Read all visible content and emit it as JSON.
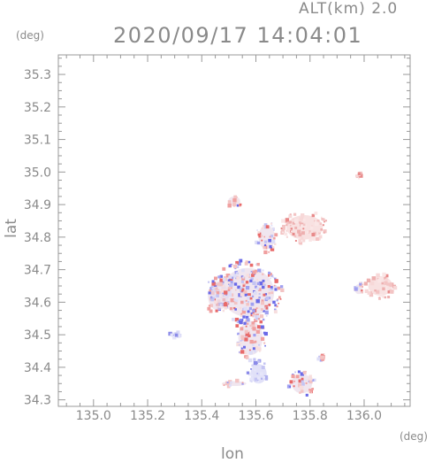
{
  "header": {
    "altitude_text": "ALT(km) 2.0",
    "timestamp": "2020/09/17 14:04:01"
  },
  "chart_data": {
    "type": "scatter",
    "title": "2020/09/17 14:04:01",
    "subtitle": "ALT(km) 2.0",
    "xlabel": "lon",
    "ylabel": "lat",
    "x_unit": "(deg)",
    "y_unit": "(deg)",
    "xlim": [
      134.87,
      136.17
    ],
    "ylim": [
      34.28,
      35.36
    ],
    "x_ticks": [
      135.0,
      135.2,
      135.4,
      135.6,
      135.8,
      136.0
    ],
    "x_tick_labels": [
      "135.0",
      "135.2",
      "135.4",
      "135.6",
      "135.8",
      "136.0"
    ],
    "y_ticks": [
      34.3,
      34.4,
      34.5,
      34.6,
      34.7,
      34.8,
      34.9,
      35.0,
      35.1,
      35.2,
      35.3
    ],
    "y_tick_labels": [
      "34.3",
      "34.4",
      "34.5",
      "34.6",
      "34.7",
      "34.8",
      "34.9",
      "35.0",
      "35.1",
      "35.2",
      "35.3"
    ],
    "grid": false,
    "colors": {
      "positive": "#e88080",
      "negative": "#8080e8",
      "axis": "#999999"
    },
    "clusters": [
      {
        "lon": 135.57,
        "lat": 34.63,
        "rlon": 0.13,
        "rlat": 0.1,
        "sign": "mixed"
      },
      {
        "lon": 135.58,
        "lat": 34.49,
        "rlon": 0.06,
        "rlat": 0.07,
        "sign": "mixed"
      },
      {
        "lon": 135.46,
        "lat": 34.62,
        "rlon": 0.05,
        "rlat": 0.06,
        "sign": "mixed"
      },
      {
        "lon": 135.78,
        "lat": 34.83,
        "rlon": 0.09,
        "rlat": 0.05,
        "sign": "positive"
      },
      {
        "lon": 135.64,
        "lat": 34.8,
        "rlon": 0.04,
        "rlat": 0.05,
        "sign": "mixed"
      },
      {
        "lon": 135.52,
        "lat": 34.91,
        "rlon": 0.03,
        "rlat": 0.02,
        "sign": "mixed"
      },
      {
        "lon": 135.61,
        "lat": 34.38,
        "rlon": 0.04,
        "rlat": 0.04,
        "sign": "negative"
      },
      {
        "lon": 135.77,
        "lat": 34.35,
        "rlon": 0.05,
        "rlat": 0.04,
        "sign": "mixed"
      },
      {
        "lon": 136.06,
        "lat": 34.65,
        "rlon": 0.06,
        "rlat": 0.04,
        "sign": "positive"
      },
      {
        "lon": 135.98,
        "lat": 34.64,
        "rlon": 0.02,
        "rlat": 0.02,
        "sign": "mixed"
      },
      {
        "lon": 135.3,
        "lat": 34.5,
        "rlon": 0.02,
        "rlat": 0.01,
        "sign": "negative"
      },
      {
        "lon": 135.98,
        "lat": 34.99,
        "rlon": 0.01,
        "rlat": 0.01,
        "sign": "positive"
      },
      {
        "lon": 135.52,
        "lat": 34.35,
        "rlon": 0.06,
        "rlat": 0.01,
        "sign": "mixed"
      },
      {
        "lon": 135.84,
        "lat": 34.43,
        "rlon": 0.01,
        "rlat": 0.01,
        "sign": "mixed"
      }
    ]
  }
}
